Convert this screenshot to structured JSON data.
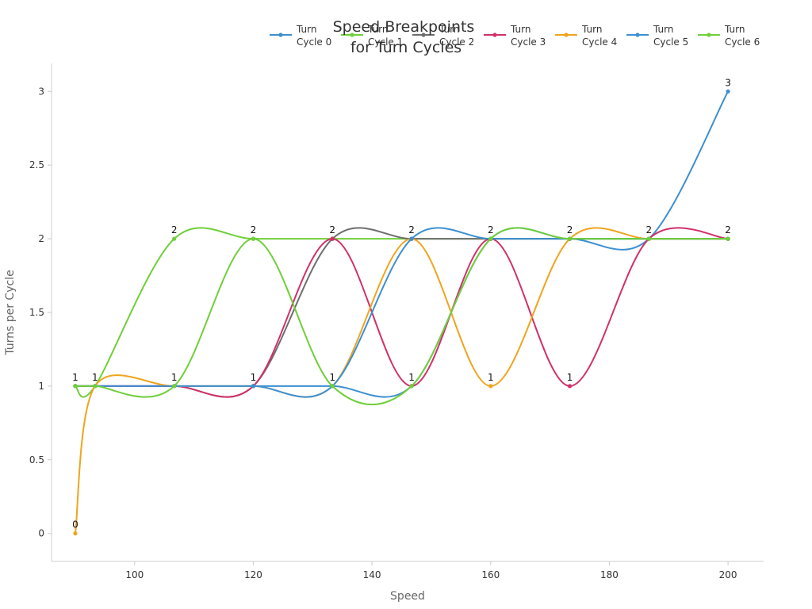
{
  "chart_data": {
    "type": "line",
    "title_lines": [
      "Speed Breakpoints",
      "for Turn Cycles"
    ],
    "xlabel": "Speed",
    "ylabel": "Turns per Cycle",
    "xlim": [
      86,
      206
    ],
    "ylim": [
      -0.19,
      3.19
    ],
    "x_ticks": [
      100,
      120,
      140,
      160,
      180,
      200
    ],
    "x_tick_labels": [
      "100",
      "120",
      "140",
      "160",
      "180",
      "200"
    ],
    "y_ticks": [
      0,
      0.5,
      1,
      1.5,
      2,
      2.5,
      3
    ],
    "y_tick_labels": [
      "0",
      "0.5",
      "1",
      "1.5",
      "2",
      "2.5",
      "3"
    ],
    "grid": false,
    "legend_position": "top",
    "series": [
      {
        "name_lines": [
          "Turn",
          "Cycle 0"
        ],
        "color": "#3d8fd1",
        "x": [
          90,
          93.33,
          106.67,
          120,
          133.33,
          146.67,
          160,
          173.33,
          186.67,
          200
        ],
        "y": [
          1,
          1,
          1,
          1,
          1,
          1,
          2,
          2,
          2,
          3
        ]
      },
      {
        "name_lines": [
          "Turn",
          "Cycle 1"
        ],
        "color": "#6fcf3a",
        "x": [
          90,
          93.33,
          106.67,
          120,
          133.33,
          146.67,
          160,
          173.33,
          186.67,
          200
        ],
        "y": [
          1,
          1,
          2,
          2,
          2,
          2,
          2,
          2,
          2,
          2
        ]
      },
      {
        "name_lines": [
          "Turn",
          "Cycle 2"
        ],
        "color": "#6e6e6e",
        "x": [
          90,
          93.33,
          106.67,
          120,
          133.33,
          146.67,
          160,
          173.33,
          186.67,
          200
        ],
        "y": [
          1,
          1,
          1,
          1,
          2,
          2,
          2,
          2,
          2,
          2
        ]
      },
      {
        "name_lines": [
          "Turn",
          "Cycle 3"
        ],
        "color": "#d1306a",
        "x": [
          90,
          93.33,
          106.67,
          120,
          133.33,
          146.67,
          160,
          173.33,
          186.67,
          200
        ],
        "y": [
          1,
          1,
          1,
          1,
          2,
          1,
          2,
          1,
          2,
          2
        ]
      },
      {
        "name_lines": [
          "Turn",
          "Cycle 4"
        ],
        "color": "#f0a41e",
        "x": [
          90,
          93.33,
          106.67,
          120,
          133.33,
          146.67,
          160,
          173.33,
          186.67,
          200
        ],
        "y": [
          0,
          1,
          1,
          1,
          1,
          2,
          1,
          2,
          2,
          2
        ]
      },
      {
        "name_lines": [
          "Turn",
          "Cycle 5"
        ],
        "color": "#3d8fd1",
        "x": [
          90,
          93.33,
          106.67,
          120,
          133.33,
          146.67,
          160,
          173.33,
          186.67,
          200
        ],
        "y": [
          1,
          1,
          1,
          1,
          1,
          2,
          2,
          2,
          2,
          2
        ]
      },
      {
        "name_lines": [
          "Turn",
          "Cycle 6"
        ],
        "color": "#6fcf3a",
        "x": [
          90,
          93.33,
          106.67,
          120,
          133.33,
          146.67,
          160,
          173.33,
          186.67,
          200
        ],
        "y": [
          1,
          1,
          1,
          2,
          1,
          1,
          2,
          2,
          2,
          2
        ]
      }
    ],
    "data_labels": [
      {
        "x": 90,
        "y": 1,
        "text": "1"
      },
      {
        "x": 93.33,
        "y": 1,
        "text": "1"
      },
      {
        "x": 106.67,
        "y": 1,
        "text": "1"
      },
      {
        "x": 120,
        "y": 1,
        "text": "1"
      },
      {
        "x": 133.33,
        "y": 1,
        "text": "1"
      },
      {
        "x": 146.67,
        "y": 1,
        "text": "1"
      },
      {
        "x": 160,
        "y": 1,
        "text": "1"
      },
      {
        "x": 173.33,
        "y": 1,
        "text": "1"
      },
      {
        "x": 90,
        "y": 0,
        "text": "0"
      },
      {
        "x": 106.67,
        "y": 2,
        "text": "2"
      },
      {
        "x": 120,
        "y": 2,
        "text": "2"
      },
      {
        "x": 133.33,
        "y": 2,
        "text": "2"
      },
      {
        "x": 146.67,
        "y": 2,
        "text": "2"
      },
      {
        "x": 160,
        "y": 2,
        "text": "2"
      },
      {
        "x": 173.33,
        "y": 2,
        "text": "2"
      },
      {
        "x": 186.67,
        "y": 2,
        "text": "2"
      },
      {
        "x": 200,
        "y": 2,
        "text": "2"
      },
      {
        "x": 200,
        "y": 3,
        "text": "3"
      }
    ]
  }
}
